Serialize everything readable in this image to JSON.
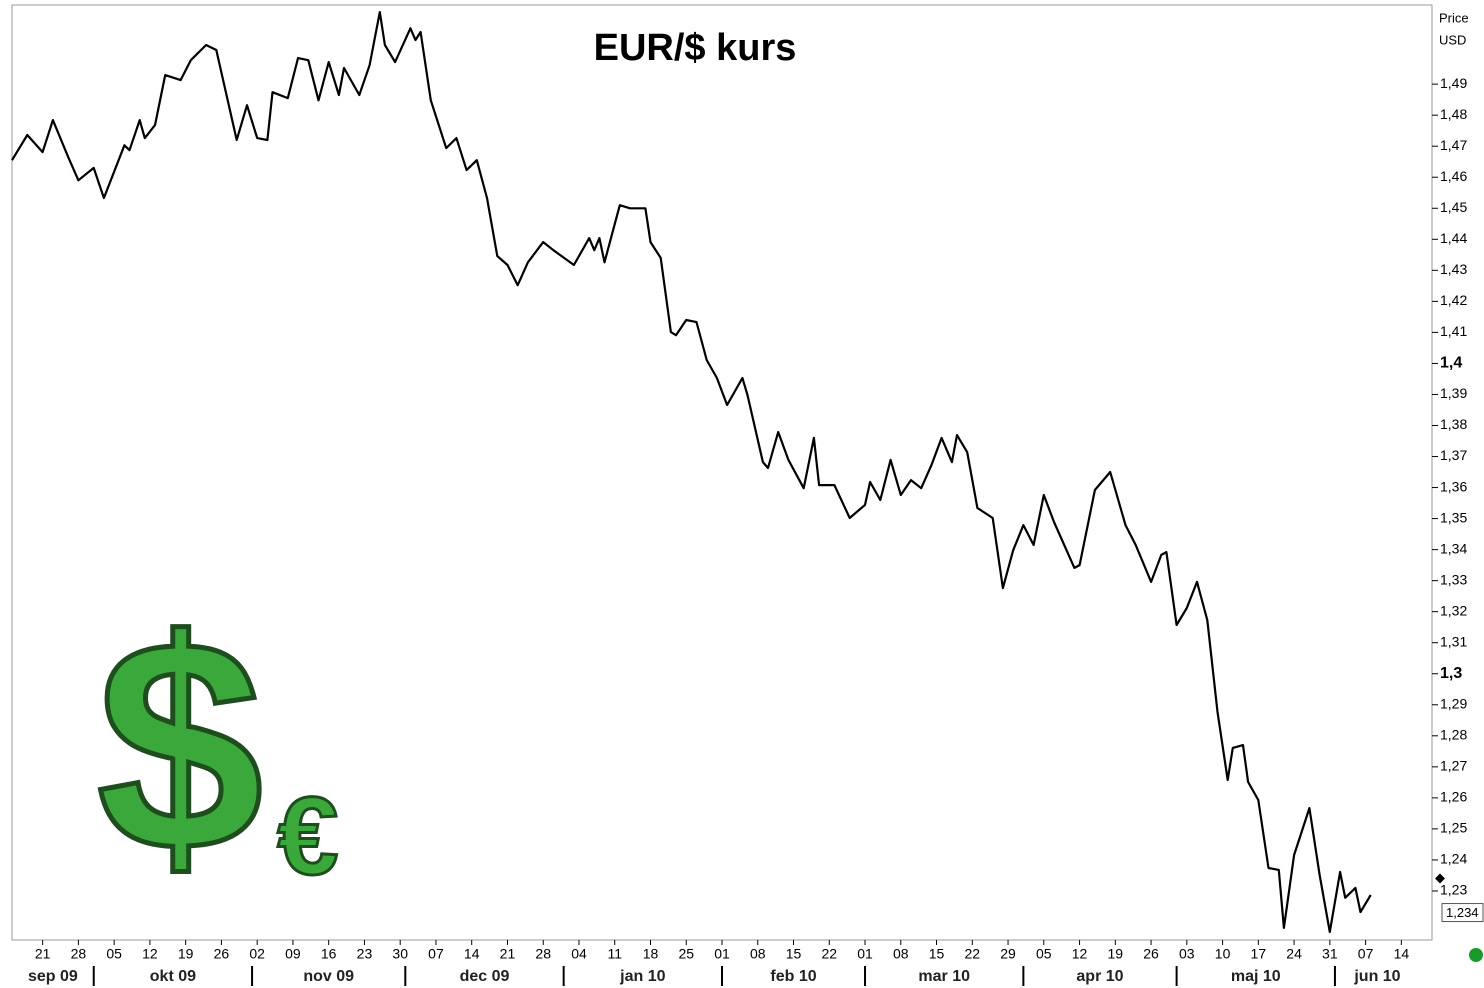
{
  "chart_data": {
    "type": "line",
    "title": "EUR/$ kurs",
    "y_axis_title": "Price",
    "y_axis_unit": "USD",
    "color": "#000000",
    "logo_symbols": [
      "$",
      "€"
    ],
    "xlim": [
      "2009-09-15",
      "2010-06-20"
    ],
    "ylim": [
      1.2142,
      1.5155
    ],
    "yticks": [
      {
        "value": 1.23,
        "label": "1,23"
      },
      {
        "value": 1.24,
        "label": "1,24"
      },
      {
        "value": 1.25,
        "label": "1,25"
      },
      {
        "value": 1.26,
        "label": "1,26"
      },
      {
        "value": 1.27,
        "label": "1,27"
      },
      {
        "value": 1.28,
        "label": "1,28"
      },
      {
        "value": 1.29,
        "label": "1,29"
      },
      {
        "value": 1.3,
        "label": "1,3"
      },
      {
        "value": 1.31,
        "label": "1,31"
      },
      {
        "value": 1.32,
        "label": "1,32"
      },
      {
        "value": 1.33,
        "label": "1,33"
      },
      {
        "value": 1.34,
        "label": "1,34"
      },
      {
        "value": 1.35,
        "label": "1,35"
      },
      {
        "value": 1.36,
        "label": "1,36"
      },
      {
        "value": 1.37,
        "label": "1,37"
      },
      {
        "value": 1.38,
        "label": "1,38"
      },
      {
        "value": 1.39,
        "label": "1,39"
      },
      {
        "value": 1.4,
        "label": "1,4"
      },
      {
        "value": 1.41,
        "label": "1,41"
      },
      {
        "value": 1.42,
        "label": "1,42"
      },
      {
        "value": 1.43,
        "label": "1,43"
      },
      {
        "value": 1.44,
        "label": "1,44"
      },
      {
        "value": 1.45,
        "label": "1,45"
      },
      {
        "value": 1.46,
        "label": "1,46"
      },
      {
        "value": 1.47,
        "label": "1,47"
      },
      {
        "value": 1.48,
        "label": "1,48"
      },
      {
        "value": 1.49,
        "label": "1,49"
      }
    ],
    "xticks": [
      {
        "value": "2009-09-21",
        "label": "21"
      },
      {
        "value": "2009-09-28",
        "label": "28"
      },
      {
        "value": "2009-10-05",
        "label": "05"
      },
      {
        "value": "2009-10-12",
        "label": "12"
      },
      {
        "value": "2009-10-19",
        "label": "19"
      },
      {
        "value": "2009-10-26",
        "label": "26"
      },
      {
        "value": "2009-11-02",
        "label": "02"
      },
      {
        "value": "2009-11-09",
        "label": "09"
      },
      {
        "value": "2009-11-16",
        "label": "16"
      },
      {
        "value": "2009-11-23",
        "label": "23"
      },
      {
        "value": "2009-11-30",
        "label": "30"
      },
      {
        "value": "2009-12-07",
        "label": "07"
      },
      {
        "value": "2009-12-14",
        "label": "14"
      },
      {
        "value": "2009-12-21",
        "label": "21"
      },
      {
        "value": "2009-12-28",
        "label": "28"
      },
      {
        "value": "2010-01-04",
        "label": "04"
      },
      {
        "value": "2010-01-11",
        "label": "11"
      },
      {
        "value": "2010-01-18",
        "label": "18"
      },
      {
        "value": "2010-01-25",
        "label": "25"
      },
      {
        "value": "2010-02-01",
        "label": "01"
      },
      {
        "value": "2010-02-08",
        "label": "08"
      },
      {
        "value": "2010-02-15",
        "label": "15"
      },
      {
        "value": "2010-02-22",
        "label": "22"
      },
      {
        "value": "2010-03-01",
        "label": "01"
      },
      {
        "value": "2010-03-08",
        "label": "08"
      },
      {
        "value": "2010-03-15",
        "label": "15"
      },
      {
        "value": "2010-03-22",
        "label": "22"
      },
      {
        "value": "2010-03-29",
        "label": "29"
      },
      {
        "value": "2010-04-05",
        "label": "05"
      },
      {
        "value": "2010-04-12",
        "label": "12"
      },
      {
        "value": "2010-04-19",
        "label": "19"
      },
      {
        "value": "2010-04-26",
        "label": "26"
      },
      {
        "value": "2010-05-03",
        "label": "03"
      },
      {
        "value": "2010-05-10",
        "label": "10"
      },
      {
        "value": "2010-05-17",
        "label": "17"
      },
      {
        "value": "2010-05-24",
        "label": "24"
      },
      {
        "value": "2010-05-31",
        "label": "31"
      },
      {
        "value": "2010-06-07",
        "label": "07"
      },
      {
        "value": "2010-06-14",
        "label": "14"
      }
    ],
    "month_ticks": [
      {
        "value": "2009-09-01",
        "label": "sep 09"
      },
      {
        "value": "2009-10-01",
        "label": "okt 09"
      },
      {
        "value": "2009-11-01",
        "label": "nov 09"
      },
      {
        "value": "2009-12-01",
        "label": "dec 09"
      },
      {
        "value": "2010-01-01",
        "label": "jan 10"
      },
      {
        "value": "2010-02-01",
        "label": "feb 10"
      },
      {
        "value": "2010-03-01",
        "label": "mar 10"
      },
      {
        "value": "2010-04-01",
        "label": "apr 10"
      },
      {
        "value": "2010-05-01",
        "label": "maj 10"
      },
      {
        "value": "2010-06-01",
        "label": "jun 10"
      }
    ],
    "last_price": {
      "value": 1.234,
      "label": "1,234"
    },
    "x": [
      "2009-09-15",
      "2009-09-18",
      "2009-09-21",
      "2009-09-23",
      "2009-09-26",
      "2009-09-28",
      "2009-10-01",
      "2009-10-03",
      "2009-10-07",
      "2009-10-08",
      "2009-10-10",
      "2009-10-11",
      "2009-10-13",
      "2009-10-15",
      "2009-10-18",
      "2009-10-20",
      "2009-10-23",
      "2009-10-25",
      "2009-10-27",
      "2009-10-29",
      "2009-10-31",
      "2009-11-02",
      "2009-11-04",
      "2009-11-05",
      "2009-11-08",
      "2009-11-10",
      "2009-11-12",
      "2009-11-14",
      "2009-11-16",
      "2009-11-18",
      "2009-11-19",
      "2009-11-22",
      "2009-11-24",
      "2009-11-26",
      "2009-11-27",
      "2009-11-29",
      "2009-12-02",
      "2009-12-03",
      "2009-12-04",
      "2009-12-06",
      "2009-12-09",
      "2009-12-11",
      "2009-12-13",
      "2009-12-15",
      "2009-12-17",
      "2009-12-19",
      "2009-12-21",
      "2009-12-23",
      "2009-12-25",
      "2009-12-28",
      "2009-12-30",
      "2010-01-03",
      "2010-01-06",
      "2010-01-07",
      "2010-01-08",
      "2010-01-09",
      "2010-01-12",
      "2010-01-14",
      "2010-01-17",
      "2010-01-18",
      "2010-01-20",
      "2010-01-22",
      "2010-01-23",
      "2010-01-25",
      "2010-01-27",
      "2010-01-29",
      "2010-01-31",
      "2010-02-02",
      "2010-02-05",
      "2010-02-06",
      "2010-02-09",
      "2010-02-10",
      "2010-02-12",
      "2010-02-14",
      "2010-02-17",
      "2010-02-19",
      "2010-02-20",
      "2010-02-23",
      "2010-02-26",
      "2010-03-01",
      "2010-03-02",
      "2010-03-04",
      "2010-03-06",
      "2010-03-08",
      "2010-03-10",
      "2010-03-12",
      "2010-03-14",
      "2010-03-16",
      "2010-03-18",
      "2010-03-19",
      "2010-03-21",
      "2010-03-23",
      "2010-03-26",
      "2010-03-28",
      "2010-03-30",
      "2010-04-01",
      "2010-04-03",
      "2010-04-05",
      "2010-04-07",
      "2010-04-11",
      "2010-04-12",
      "2010-04-15",
      "2010-04-18",
      "2010-04-21",
      "2010-04-23",
      "2010-04-26",
      "2010-04-28",
      "2010-04-29",
      "2010-05-01",
      "2010-05-03",
      "2010-05-05",
      "2010-05-07",
      "2010-05-09",
      "2010-05-11",
      "2010-05-12",
      "2010-05-14",
      "2010-05-15",
      "2010-05-17",
      "2010-05-19",
      "2010-05-21",
      "2010-05-22",
      "2010-05-24",
      "2010-05-27",
      "2010-05-29",
      "2010-05-31",
      "2010-06-02",
      "2010-06-03",
      "2010-06-05",
      "2010-06-06",
      "2010-06-08"
    ],
    "values": [
      1.4655,
      1.4736,
      1.4681,
      1.4784,
      1.4665,
      1.459,
      1.463,
      1.4533,
      1.4703,
      1.4687,
      1.4784,
      1.4726,
      1.4768,
      1.4929,
      1.4913,
      1.4977,
      1.5026,
      1.501,
      1.4865,
      1.472,
      1.4832,
      1.4726,
      1.472,
      1.4874,
      1.4855,
      1.4984,
      1.4977,
      1.4848,
      1.4971,
      1.4865,
      1.4952,
      1.4865,
      1.4961,
      1.5132,
      1.5026,
      1.4971,
      1.508,
      1.5042,
      1.5068,
      1.4848,
      1.4694,
      1.4726,
      1.4623,
      1.4655,
      1.4533,
      1.4346,
      1.4317,
      1.4252,
      1.4326,
      1.4391,
      1.4365,
      1.4317,
      1.4404,
      1.4365,
      1.4404,
      1.4326,
      1.451,
      1.45,
      1.45,
      1.4391,
      1.434,
      1.4101,
      1.4091,
      1.414,
      1.4133,
      1.4011,
      1.3953,
      1.3866,
      1.3953,
      1.3898,
      1.3682,
      1.3663,
      1.3779,
      1.3689,
      1.3598,
      1.376,
      1.3608,
      1.3608,
      1.3502,
      1.3544,
      1.3618,
      1.356,
      1.3689,
      1.3576,
      1.3624,
      1.3598,
      1.3672,
      1.376,
      1.3682,
      1.3769,
      1.3714,
      1.3534,
      1.3502,
      1.3276,
      1.3398,
      1.3479,
      1.3415,
      1.3576,
      1.3489,
      1.3341,
      1.335,
      1.3592,
      1.365,
      1.3479,
      1.3415,
      1.3296,
      1.3383,
      1.3392,
      1.3157,
      1.3212,
      1.3296,
      1.3173,
      1.2877,
      1.2658,
      1.2761,
      1.277,
      1.2651,
      1.2593,
      1.2374,
      1.2368,
      1.2181,
      1.2416,
      1.2567,
      1.2352,
      1.2168,
      1.2361,
      1.2278,
      1.231,
      1.2232,
      1.2287
    ]
  }
}
